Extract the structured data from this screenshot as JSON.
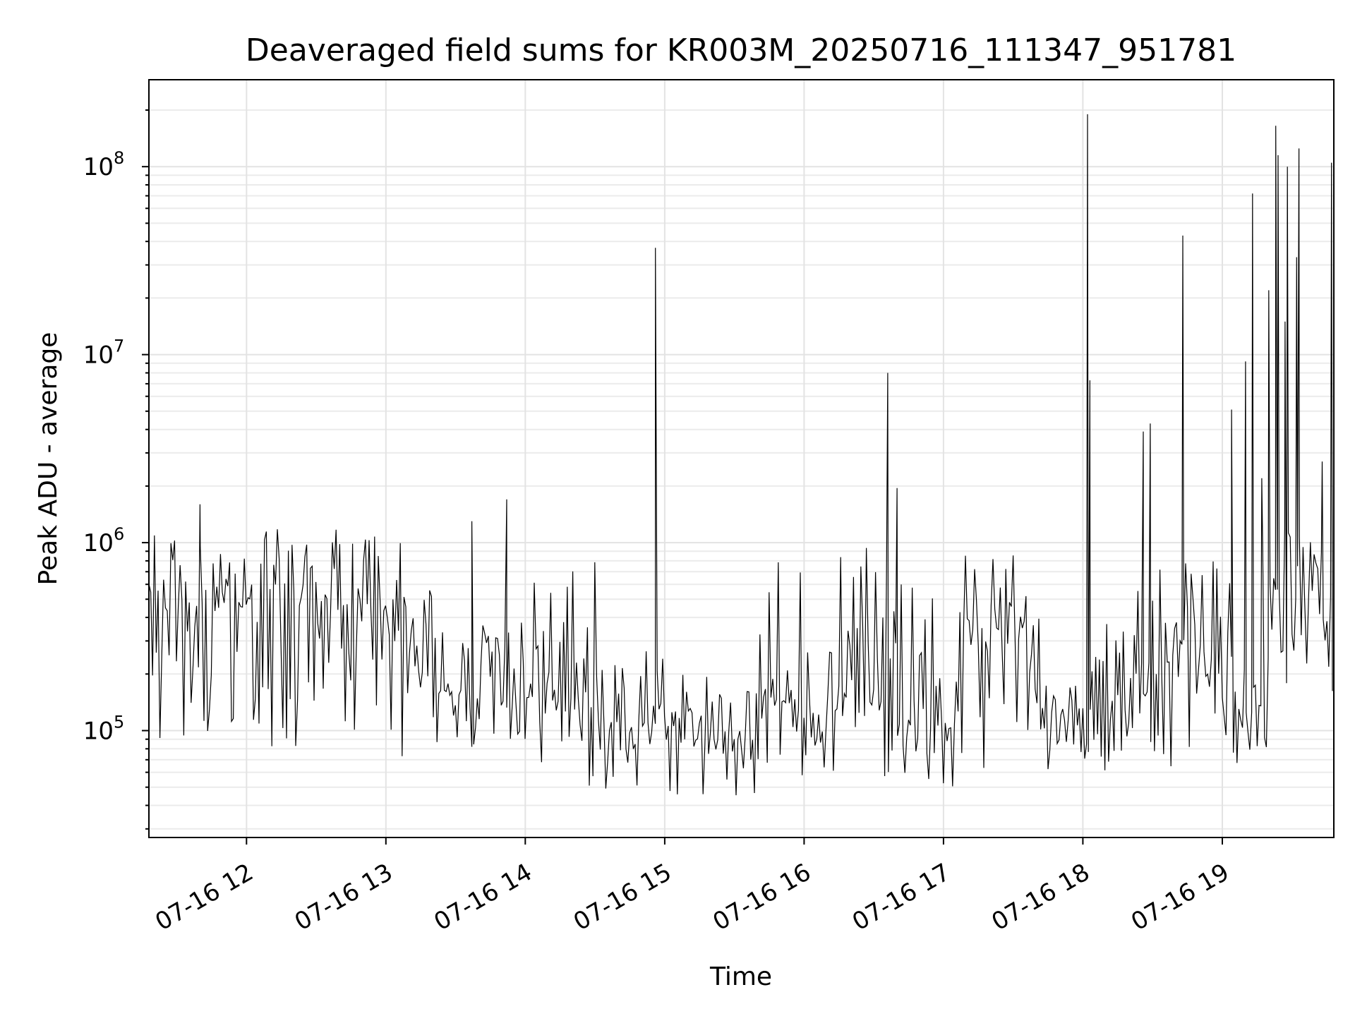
{
  "chart_data": {
    "type": "line",
    "title": "Deaveraged field sums for KR003M_20250716_111347_951781",
    "xlabel": "Time",
    "ylabel": "Peak ADU - average",
    "y_scale": "log",
    "xlim": [
      "2025-07-16 11:18",
      "2025-07-16 19:48"
    ],
    "ylim": [
      27000,
      290000000
    ],
    "x_ticks": [
      "07-16 12",
      "07-16 13",
      "07-16 14",
      "07-16 15",
      "07-16 16",
      "07-16 17",
      "07-16 18",
      "07-16 19"
    ],
    "y_ticks": [
      {
        "value": 100000,
        "base": "10",
        "exp": "5"
      },
      {
        "value": 1000000,
        "base": "10",
        "exp": "6"
      },
      {
        "value": 10000000,
        "base": "10",
        "exp": "7"
      },
      {
        "value": 100000000,
        "base": "10",
        "exp": "8"
      }
    ],
    "grid": true,
    "line_color": "#000000",
    "segments": [
      {
        "start": "2025-07-16 11:18",
        "end": "2025-07-16 12:00",
        "low": 80000,
        "high": 1100000,
        "median": 450000
      },
      {
        "start": "2025-07-16 12:00",
        "end": "2025-07-16 13:00",
        "low": 80000,
        "high": 1200000,
        "median": 500000
      },
      {
        "start": "2025-07-16 13:00",
        "end": "2025-07-16 13:20",
        "low": 55000,
        "high": 1100000,
        "median": 300000
      },
      {
        "start": "2025-07-16 13:20",
        "end": "2025-07-16 14:00",
        "low": 80000,
        "high": 400000,
        "median": 160000
      },
      {
        "start": "2025-07-16 14:00",
        "end": "2025-07-16 14:30",
        "low": 50000,
        "high": 1000000,
        "median": 150000
      },
      {
        "start": "2025-07-16 14:30",
        "end": "2025-07-16 15:00",
        "low": 45000,
        "high": 300000,
        "median": 110000
      },
      {
        "start": "2025-07-16 15:00",
        "end": "2025-07-16 15:40",
        "low": 40000,
        "high": 200000,
        "median": 90000
      },
      {
        "start": "2025-07-16 15:40",
        "end": "2025-07-16 16:00",
        "low": 50000,
        "high": 950000,
        "median": 150000
      },
      {
        "start": "2025-07-16 16:00",
        "end": "2025-07-16 16:15",
        "low": 50000,
        "high": 300000,
        "median": 100000
      },
      {
        "start": "2025-07-16 16:15",
        "end": "2025-07-16 16:40",
        "low": 50000,
        "high": 1050000,
        "median": 250000
      },
      {
        "start": "2025-07-16 16:40",
        "end": "2025-07-16 17:05",
        "low": 50000,
        "high": 600000,
        "median": 110000
      },
      {
        "start": "2025-07-16 17:05",
        "end": "2025-07-16 17:40",
        "low": 60000,
        "high": 950000,
        "median": 350000
      },
      {
        "start": "2025-07-16 17:40",
        "end": "2025-07-16 18:20",
        "low": 60000,
        "high": 400000,
        "median": 130000
      },
      {
        "start": "2025-07-16 18:20",
        "end": "2025-07-16 19:00",
        "low": 60000,
        "high": 1000000,
        "median": 200000
      },
      {
        "start": "2025-07-16 19:00",
        "end": "2025-07-16 19:20",
        "low": 60000,
        "high": 1000000,
        "median": 130000
      },
      {
        "start": "2025-07-16 19:20",
        "end": "2025-07-16 19:48",
        "low": 150000,
        "high": 1500000,
        "median": 550000
      }
    ],
    "spikes": [
      {
        "t": "2025-07-16 11:40",
        "value": 1600000
      },
      {
        "t": "2025-07-16 13:52",
        "value": 1700000
      },
      {
        "t": "2025-07-16 13:37",
        "value": 1300000
      },
      {
        "t": "2025-07-16 14:56",
        "value": 37000000
      },
      {
        "t": "2025-07-16 16:36",
        "value": 8000000
      },
      {
        "t": "2025-07-16 16:40",
        "value": 1950000
      },
      {
        "t": "2025-07-16 18:02",
        "value": 190000000
      },
      {
        "t": "2025-07-16 18:03",
        "value": 7300000
      },
      {
        "t": "2025-07-16 18:26",
        "value": 3900000
      },
      {
        "t": "2025-07-16 18:29",
        "value": 4300000
      },
      {
        "t": "2025-07-16 18:43",
        "value": 43000000
      },
      {
        "t": "2025-07-16 19:04",
        "value": 5100000
      },
      {
        "t": "2025-07-16 19:10",
        "value": 9200000
      },
      {
        "t": "2025-07-16 19:13",
        "value": 72000000
      },
      {
        "t": "2025-07-16 19:17",
        "value": 2200000
      },
      {
        "t": "2025-07-16 19:20",
        "value": 22000000
      },
      {
        "t": "2025-07-16 19:23",
        "value": 165000000
      },
      {
        "t": "2025-07-16 19:24",
        "value": 115000000
      },
      {
        "t": "2025-07-16 19:27",
        "value": 15000000
      },
      {
        "t": "2025-07-16 19:28",
        "value": 100000000
      },
      {
        "t": "2025-07-16 19:32",
        "value": 33000000
      },
      {
        "t": "2025-07-16 19:33",
        "value": 125000000
      },
      {
        "t": "2025-07-16 19:43",
        "value": 2700000
      },
      {
        "t": "2025-07-16 19:47",
        "value": 105000000
      }
    ]
  }
}
